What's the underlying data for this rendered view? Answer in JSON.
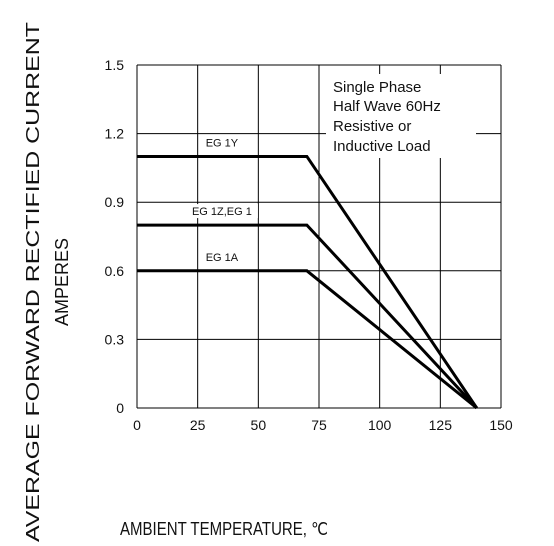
{
  "chart_data": {
    "type": "line",
    "title": "",
    "xlabel": "AMBIENT TEMPERATURE, ℃",
    "ylabel_lines": [
      "AVERAGE FORWARD RECTIFIED CURRENT",
      "AMPERES"
    ],
    "xlim": [
      0,
      150
    ],
    "ylim": [
      0,
      1.5
    ],
    "x_ticks": [
      "0",
      "25",
      "50",
      "75",
      "100",
      "125",
      "150"
    ],
    "y_ticks": [
      "0",
      "0.3",
      "0.6",
      "0.9",
      "1.2",
      "1.5"
    ],
    "grid": true,
    "annotation_lines": [
      "Single Phase",
      "Half Wave 60Hz",
      "Resistive or",
      "Inductive Load"
    ],
    "series": [
      {
        "name": "EG  1Y",
        "x": [
          0,
          70,
          140
        ],
        "y": [
          1.1,
          1.1,
          0
        ]
      },
      {
        "name": "EG  1Z,EG  1",
        "x": [
          0,
          70,
          140
        ],
        "y": [
          0.8,
          0.8,
          0
        ]
      },
      {
        "name": "EG  1A",
        "x": [
          0,
          70,
          140
        ],
        "y": [
          0.6,
          0.6,
          0
        ]
      }
    ]
  }
}
